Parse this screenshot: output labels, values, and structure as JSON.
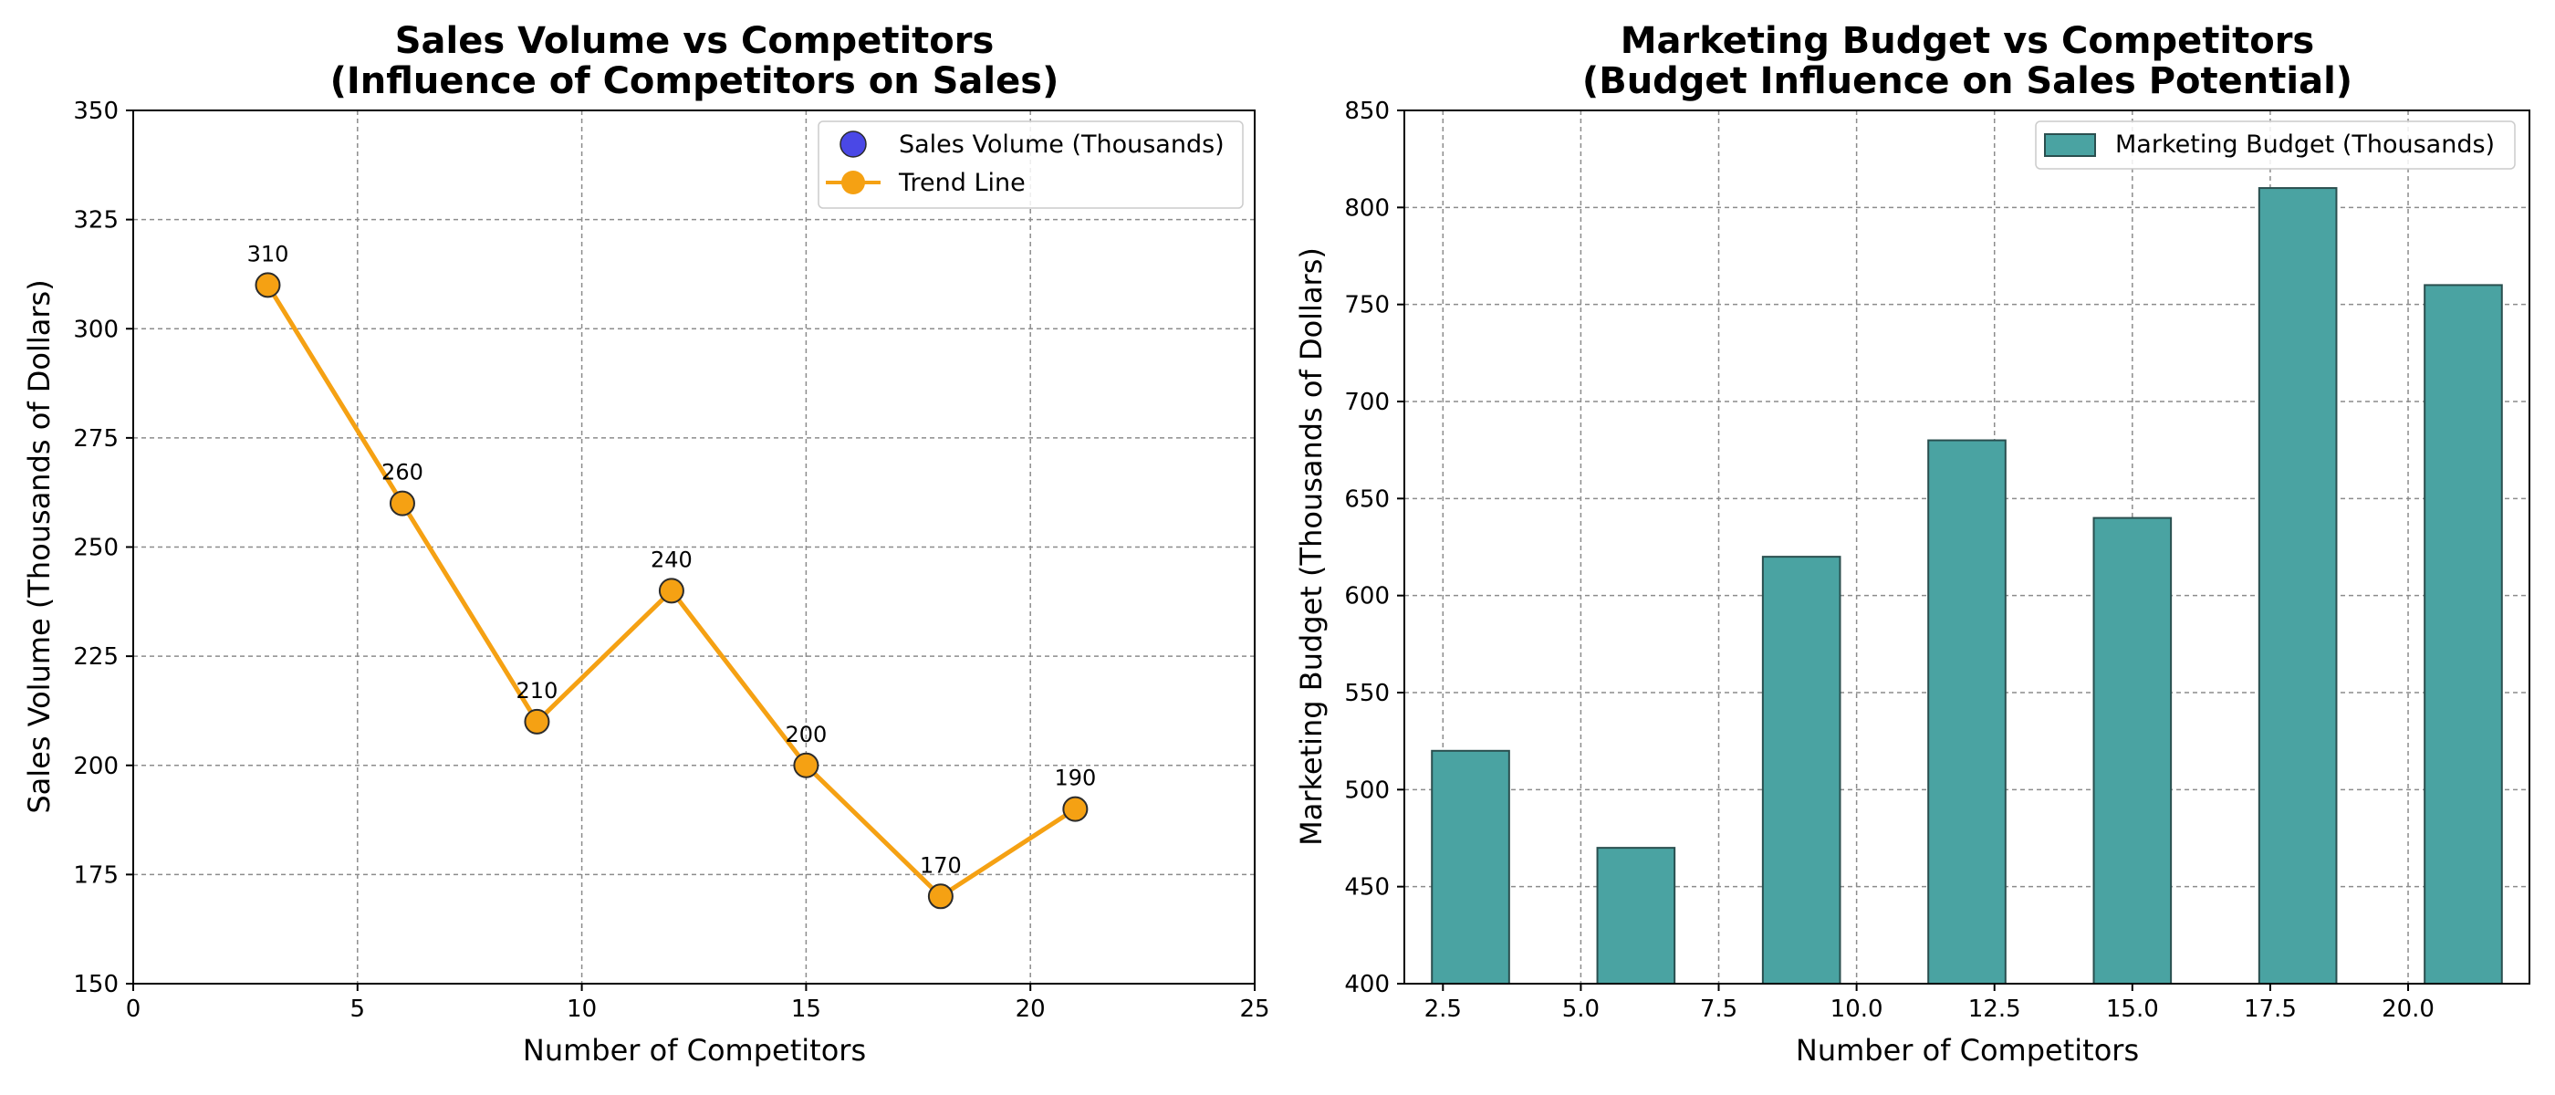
{
  "charts": [
    {
      "type": "line",
      "title_line1": "Sales Volume vs Competitors",
      "title_line2": "(Influence of Competitors on Sales)",
      "xlabel": "Number of Competitors",
      "ylabel": "Sales Volume (Thousands of Dollars)",
      "xlim": [
        0,
        25
      ],
      "ylim": [
        150,
        350
      ],
      "xticks": [
        0,
        5,
        10,
        15,
        20,
        25
      ],
      "yticks": [
        150,
        175,
        200,
        225,
        250,
        275,
        300,
        325,
        350
      ],
      "grid": true,
      "legend_position": "top-right",
      "series": [
        {
          "name": "Sales Volume (Thousands)",
          "kind": "scatter",
          "color": "#4a48e6"
        },
        {
          "name": "Trend Line",
          "kind": "line",
          "color": "#f5a113"
        }
      ],
      "x": [
        3,
        6,
        9,
        12,
        15,
        18,
        21
      ],
      "y": [
        310,
        260,
        210,
        240,
        200,
        170,
        190
      ],
      "data_labels": [
        "310",
        "260",
        "210",
        "240",
        "200",
        "170",
        "190"
      ]
    },
    {
      "type": "bar",
      "title_line1": "Marketing Budget vs Competitors",
      "title_line2": "(Budget Influence on Sales Potential)",
      "xlabel": "Number of Competitors",
      "ylabel": "Marketing Budget (Thousands of Dollars)",
      "xlim": [
        1.8,
        22.2
      ],
      "ylim": [
        400,
        850
      ],
      "xticks": [
        2.5,
        5.0,
        7.5,
        10.0,
        12.5,
        15.0,
        17.5,
        20.0
      ],
      "xtick_labels": [
        "2.5",
        "5.0",
        "7.5",
        "10.0",
        "12.5",
        "15.0",
        "17.5",
        "20.0"
      ],
      "yticks": [
        400,
        450,
        500,
        550,
        600,
        650,
        700,
        750,
        800,
        850
      ],
      "grid": true,
      "legend_position": "top-right",
      "bar_width": 1.4,
      "series": [
        {
          "name": "Marketing Budget (Thousands)",
          "color": "#4aa3a2",
          "edge_color": "#2a4f4f"
        }
      ],
      "x": [
        3,
        6,
        9,
        12,
        15,
        18,
        21
      ],
      "values": [
        520,
        470,
        620,
        680,
        640,
        810,
        760
      ]
    }
  ]
}
